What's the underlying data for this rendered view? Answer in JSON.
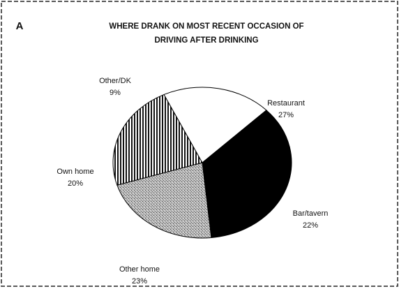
{
  "chart_data": {
    "type": "pie",
    "panel_label": "A",
    "title": [
      "WHERE DRANK ON MOST RECENT OCCASION OF",
      "DRIVING AFTER DRINKING"
    ],
    "categories": [
      "Restaurant",
      "Bar/tavern",
      "Other home",
      "Own home",
      "Other/DK"
    ],
    "values": [
      27,
      22,
      23,
      20,
      9
    ],
    "value_labels": [
      "27%",
      "22%",
      "23%",
      "20%",
      "9%"
    ],
    "colors": [
      "#000000",
      "stipple",
      "hatch",
      "#ffffff",
      "#000000"
    ]
  }
}
